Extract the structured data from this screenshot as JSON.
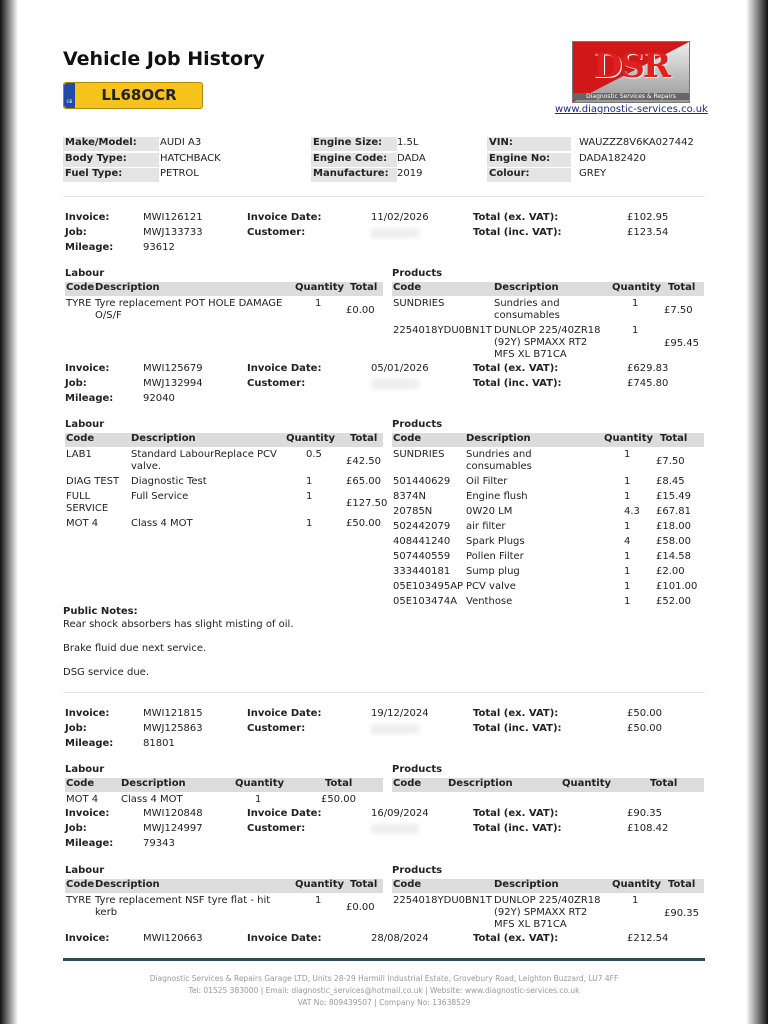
{
  "header": {
    "title": "Vehicle Job History",
    "registration": "LL68OCR",
    "plate_country": "GB",
    "logo_text": "DSR",
    "logo_subtitle": "Diagnostic Services & Repairs",
    "website": "www.diagnostic-services.co.uk"
  },
  "vehicle": [
    [
      {
        "label": "Make/Model:",
        "value": "AUDI A3"
      },
      {
        "label": "Body Type:",
        "value": "HATCHBACK"
      },
      {
        "label": "Fuel Type:",
        "value": "PETROL"
      }
    ],
    [
      {
        "label": "Engine Size:",
        "value": "1.5L"
      },
      {
        "label": "Engine Code:",
        "value": "DADA"
      },
      {
        "label": "Manufacture:",
        "value": "2019"
      }
    ],
    [
      {
        "label": "VIN:",
        "value": "WAUZZZ8V6KA027442"
      },
      {
        "label": "Engine No:",
        "value": "DADA182420"
      },
      {
        "label": "Colour:",
        "value": "GREY"
      }
    ]
  ],
  "labels": {
    "invoice": "Invoice:",
    "job": "Job:",
    "mileage": "Mileage:",
    "invoice_date": "Invoice Date:",
    "customer": "Customer:",
    "total_ex": "Total (ex. VAT):",
    "total_inc": "Total (inc. VAT):",
    "labour": "Labour",
    "products": "Products",
    "code": "Code",
    "description": "Description",
    "quantity": "Quantity",
    "total": "Total"
  },
  "invoices": [
    {
      "invoice": "MWI126121",
      "job": "MWJ133733",
      "mileage": "93612",
      "date": "11/02/2026",
      "total_ex": "£102.95",
      "total_inc": "£123.54",
      "labour": [
        {
          "code": "TYRE",
          "description": "Tyre replacement POT HOLE DAMAGE O/S/F",
          "quantity": "1",
          "total": "£0.00"
        }
      ],
      "products": [
        {
          "code": "SUNDRIES",
          "description": "Sundries and consumables",
          "quantity": "1",
          "total": "£7.50"
        },
        {
          "code": "2254018YDU0BN1T",
          "description": "DUNLOP 225/40ZR18 (92Y) SPMAXX RT2 MFS XL B71CA",
          "quantity": "1",
          "total": "£95.45"
        }
      ]
    },
    {
      "invoice": "MWI125679",
      "job": "MWJ132994",
      "mileage": "92040",
      "date": "05/01/2026",
      "total_ex": "£629.83",
      "total_inc": "£745.80",
      "labour": [
        {
          "code": "LAB1",
          "description": "Standard LabourReplace PCV valve.",
          "quantity": "0.5",
          "total": "£42.50"
        },
        {
          "code": "DIAG TEST",
          "description": "Diagnostic Test",
          "quantity": "1",
          "total": "£65.00"
        },
        {
          "code": "FULL SERVICE",
          "description": "Full Service",
          "quantity": "1",
          "total": "£127.50"
        },
        {
          "code": "MOT 4",
          "description": "Class 4 MOT",
          "quantity": "1",
          "total": "£50.00"
        }
      ],
      "products": [
        {
          "code": "SUNDRIES",
          "description": "Sundries and consumables",
          "quantity": "1",
          "total": "£7.50"
        },
        {
          "code": "501440629",
          "description": "Oil Filter",
          "quantity": "1",
          "total": "£8.45"
        },
        {
          "code": "8374N",
          "description": "Engine flush",
          "quantity": "1",
          "total": "£15.49"
        },
        {
          "code": "20785N",
          "description": "0W20 LM",
          "quantity": "4.3",
          "total": "£67.81"
        },
        {
          "code": "502442079",
          "description": "air filter",
          "quantity": "1",
          "total": "£18.00"
        },
        {
          "code": "408441240",
          "description": "Spark Plugs",
          "quantity": "4",
          "total": "£58.00"
        },
        {
          "code": "507440559",
          "description": "Pollen Filter",
          "quantity": "1",
          "total": "£14.58"
        },
        {
          "code": "333440181",
          "description": "Sump plug",
          "quantity": "1",
          "total": "£2.00"
        },
        {
          "code": "05E103495AP",
          "description": "PCV valve",
          "quantity": "1",
          "total": "£101.00"
        },
        {
          "code": "05E103474A",
          "description": "Venthose",
          "quantity": "1",
          "total": "£52.00"
        }
      ],
      "notes_title": "Public Notes:",
      "notes": [
        "Rear shock absorbers has slight misting of oil.",
        "Brake fluid due next service.",
        "DSG service due."
      ]
    },
    {
      "invoice": "MWI121815",
      "job": "MWJ125863",
      "mileage": "81801",
      "date": "19/12/2024",
      "total_ex": "£50.00",
      "total_inc": "£50.00",
      "labour": [
        {
          "code": "MOT 4",
          "description": "Class 4 MOT",
          "quantity": "1",
          "total": "£50.00"
        }
      ],
      "products": []
    },
    {
      "invoice": "MWI120848",
      "job": "MWJ124997",
      "mileage": "79343",
      "date": "16/09/2024",
      "total_ex": "£90.35",
      "total_inc": "£108.42",
      "labour": [
        {
          "code": "TYRE",
          "description": "Tyre replacement NSF tyre flat - hit kerb",
          "quantity": "1",
          "total": "£0.00"
        }
      ],
      "products": [
        {
          "code": "2254018YDU0BN1T",
          "description": "DUNLOP 225/40ZR18 (92Y) SPMAXX RT2 MFS XL B71CA",
          "quantity": "1",
          "total": "£90.35"
        }
      ]
    },
    {
      "invoice": "MWI120663",
      "date": "28/08/2024",
      "total_ex": "£212.54"
    }
  ],
  "footer": {
    "line1": "Diagnostic Services & Repairs Garage LTD, Units 28-29 Harmill Industrial Estate, Grovebury Road, Leighton Buzzard, LU7 4FF",
    "line2": "Tel: 01525 383000  |  Email: diagnostic_services@hotmail.co.uk  |  Website: www.diagnostic-services.co.uk",
    "line3": "VAT No: 809439507 | Company No: 13638529"
  }
}
